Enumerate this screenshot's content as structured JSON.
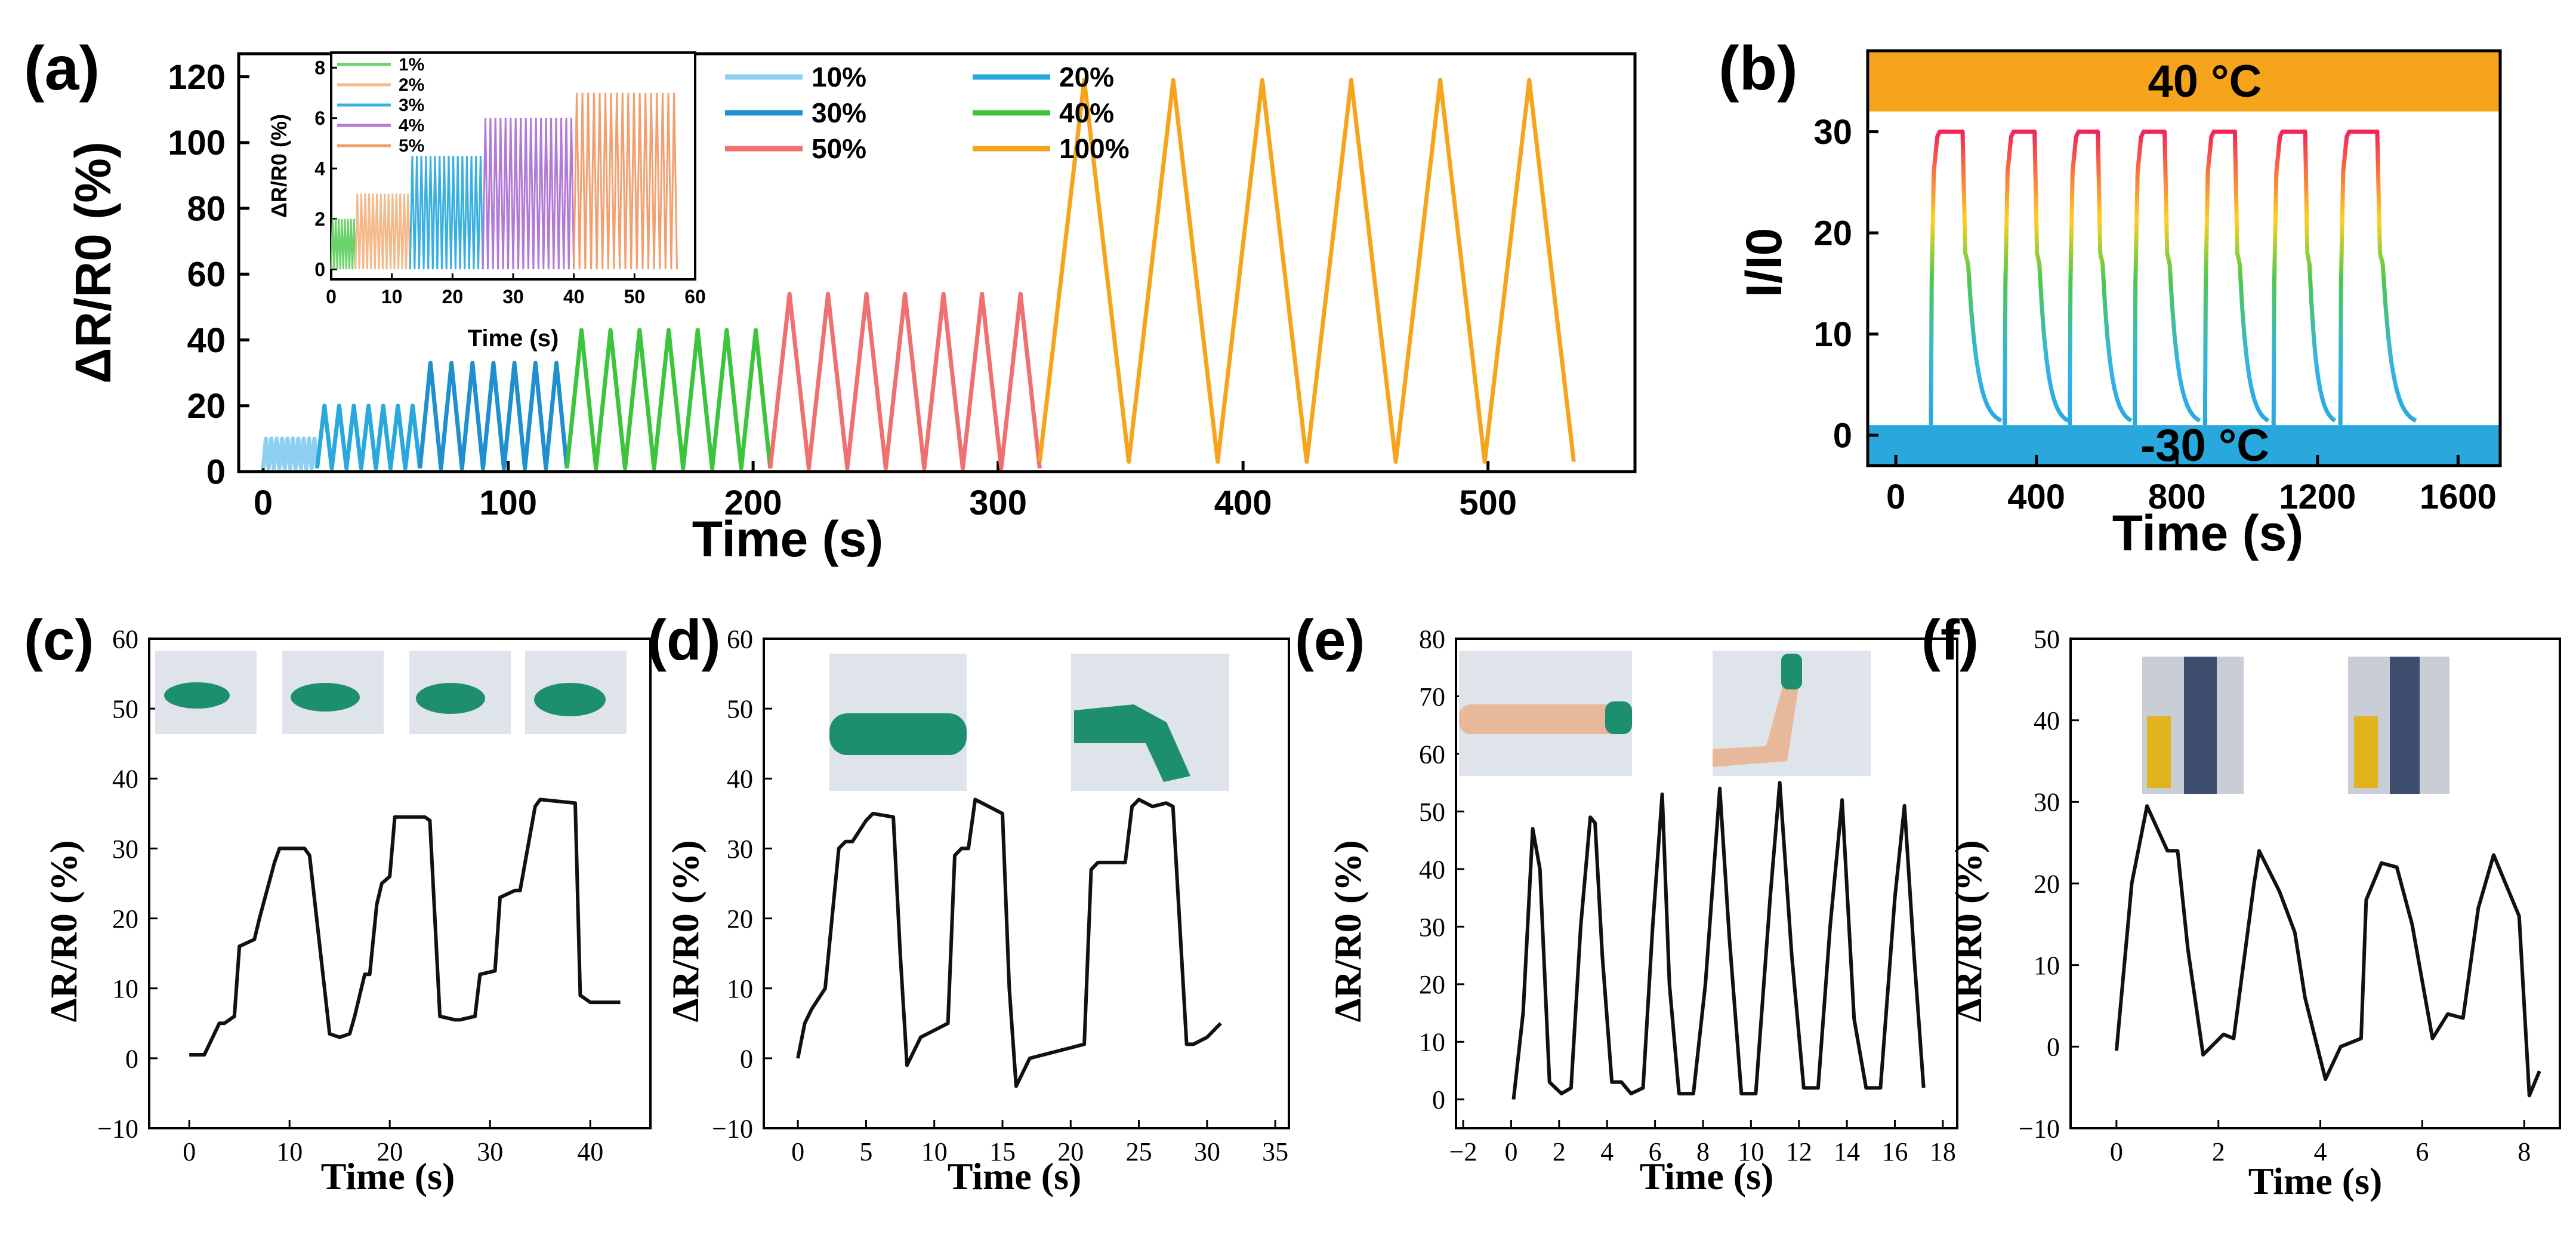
{
  "chart_data": [
    {
      "id": "a",
      "panel_label": "(a)",
      "type": "line",
      "xlabel": "Time (s)",
      "ylabel": "ΔR/R0 (%)",
      "xlim": [
        -10,
        560
      ],
      "ylim": [
        0,
        127
      ],
      "xticks": [
        0,
        100,
        200,
        300,
        400,
        500
      ],
      "yticks": [
        0,
        20,
        40,
        60,
        80,
        100,
        120
      ],
      "legend": [
        {
          "label": "10%",
          "color": "#8fd0f0"
        },
        {
          "label": "20%",
          "color": "#29a8dd"
        },
        {
          "label": "30%",
          "color": "#1f8fcf"
        },
        {
          "label": "40%",
          "color": "#3cc43c"
        },
        {
          "label": "50%",
          "color": "#f07070"
        },
        {
          "label": "100%",
          "color": "#f7a41d"
        }
      ],
      "series": [
        {
          "name": "10%",
          "color": "#8fd0f0",
          "t_start": 0,
          "t_end": 22,
          "cycles": 10,
          "min": 1,
          "max": 10
        },
        {
          "name": "20%",
          "color": "#29a8dd",
          "t_start": 22,
          "t_end": 64,
          "cycles": 7,
          "min": 1,
          "max": 20
        },
        {
          "name": "30%",
          "color": "#1f8fcf",
          "t_start": 64,
          "t_end": 124,
          "cycles": 7,
          "min": 1,
          "max": 33
        },
        {
          "name": "40%",
          "color": "#3cc43c",
          "t_start": 124,
          "t_end": 207,
          "cycles": 7,
          "min": 1,
          "max": 43
        },
        {
          "name": "50%",
          "color": "#f07070",
          "t_start": 207,
          "t_end": 317,
          "cycles": 7,
          "min": 1,
          "max": 54
        },
        {
          "name": "100%",
          "color": "#f7a41d",
          "t_start": 317,
          "t_end": 535,
          "cycles": 6,
          "min": 3,
          "max": 119
        }
      ],
      "inset": {
        "xlabel": "Time (s)",
        "ylabel": "ΔR/R0 (%)",
        "xlim": [
          0,
          60
        ],
        "ylim": [
          -0.4,
          8.6
        ],
        "xticks": [
          0,
          10,
          20,
          30,
          40,
          50,
          60
        ],
        "yticks": [
          0,
          2,
          4,
          6,
          8
        ],
        "legend": [
          {
            "label": "1%",
            "color": "#6cd26c"
          },
          {
            "label": "2%",
            "color": "#f5b98a"
          },
          {
            "label": "3%",
            "color": "#3ab0e0"
          },
          {
            "label": "4%",
            "color": "#b07ad6"
          },
          {
            "label": "5%",
            "color": "#f3a070"
          }
        ],
        "series": [
          {
            "name": "1%",
            "color": "#6cd26c",
            "t_start": 0,
            "t_end": 4,
            "cycles": 8,
            "min": 0,
            "max": 2
          },
          {
            "name": "2%",
            "color": "#f5b98a",
            "t_start": 4,
            "t_end": 13,
            "cycles": 14,
            "min": 0,
            "max": 3
          },
          {
            "name": "3%",
            "color": "#3ab0e0",
            "t_start": 13,
            "t_end": 25,
            "cycles": 16,
            "min": 0,
            "max": 4.5
          },
          {
            "name": "4%",
            "color": "#b07ad6",
            "t_start": 25,
            "t_end": 40,
            "cycles": 18,
            "min": 0,
            "max": 6
          },
          {
            "name": "5%",
            "color": "#f3a070",
            "t_start": 40,
            "t_end": 57,
            "cycles": 18,
            "min": 0,
            "max": 7
          }
        ]
      }
    },
    {
      "id": "b",
      "panel_label": "(b)",
      "type": "line",
      "xlabel": "Time (s)",
      "ylabel": "I/I0",
      "xlim": [
        -80,
        1720
      ],
      "ylim": [
        -3,
        38
      ],
      "xticks": [
        0,
        400,
        800,
        1200,
        1600
      ],
      "yticks": [
        0,
        10,
        20,
        30
      ],
      "band_hot_label": "40 °C",
      "band_cold_label": "-30 °C",
      "band_hot_range": [
        32,
        38
      ],
      "band_cold_range": [
        -3,
        1
      ],
      "colors": {
        "hot": "#f7a41d",
        "cold": "#29a8dd"
      },
      "cycles": [
        {
          "start": 100,
          "plateau_end": 190,
          "end": 300
        },
        {
          "start": 310,
          "plateau_end": 395,
          "end": 490
        },
        {
          "start": 495,
          "plateau_end": 575,
          "end": 670
        },
        {
          "start": 680,
          "plateau_end": 765,
          "end": 865
        },
        {
          "start": 880,
          "plateau_end": 965,
          "end": 1060
        },
        {
          "start": 1075,
          "plateau_end": 1165,
          "end": 1250
        },
        {
          "start": 1265,
          "plateau_end": 1370,
          "end": 1480
        }
      ],
      "max": 30,
      "min": 1
    },
    {
      "id": "c",
      "panel_label": "(c)",
      "type": "line",
      "xlabel": "Time (s)",
      "ylabel": "ΔR/R0 (%)",
      "xlim": [
        -4,
        46
      ],
      "ylim": [
        -10,
        60
      ],
      "xticks": [
        0,
        10,
        20,
        30,
        40
      ],
      "yticks": [
        -10,
        0,
        10,
        20,
        30,
        40,
        50,
        60
      ],
      "x": [
        0,
        1.5,
        2,
        3,
        3.5,
        4.5,
        5,
        6.5,
        7,
        8.5,
        9,
        11.5,
        12,
        14,
        15,
        16,
        16.5,
        17.5,
        18,
        18.7,
        19.2,
        20,
        20.5,
        23.5,
        24,
        25,
        26.5,
        27,
        28.5,
        29,
        30.5,
        31,
        32.5,
        33,
        34.5,
        35,
        38.5,
        39,
        40,
        43
      ],
      "y": [
        0.5,
        0.5,
        2,
        5,
        5,
        6,
        16,
        17,
        20,
        28,
        30,
        30,
        29,
        3.5,
        3,
        3.5,
        6,
        12,
        12,
        22,
        25,
        26,
        34.5,
        34.5,
        34,
        6,
        5.5,
        5.5,
        6,
        12,
        12.5,
        23,
        24,
        24,
        36,
        37,
        36.5,
        9,
        8,
        8
      ]
    },
    {
      "id": "d",
      "panel_label": "(d)",
      "type": "line",
      "xlabel": "Time (s)",
      "ylabel": "ΔR/R0 (%)",
      "xlim": [
        -2.5,
        36
      ],
      "ylim": [
        -10,
        60
      ],
      "xticks": [
        0,
        5,
        10,
        15,
        20,
        25,
        30,
        35
      ],
      "yticks": [
        -10,
        0,
        10,
        20,
        30,
        40,
        50,
        60
      ],
      "x": [
        0,
        0.5,
        1,
        2,
        3,
        3.5,
        4,
        5,
        5.5,
        7,
        7.5,
        8,
        9,
        10,
        11,
        11.5,
        12,
        12.5,
        13,
        13.5,
        15,
        15.5,
        16,
        17,
        19,
        21,
        21.5,
        22,
        23,
        24,
        24.5,
        25,
        26,
        27,
        27.5,
        28.5,
        29,
        30,
        31
      ],
      "y": [
        0,
        5,
        7,
        10,
        30,
        31,
        31,
        34,
        35,
        34.5,
        15,
        -1,
        3,
        4,
        5,
        29,
        30,
        30,
        37,
        36.5,
        35,
        10,
        -4,
        0,
        1,
        2,
        27,
        28,
        28,
        28,
        36,
        37,
        36,
        36.5,
        36,
        2,
        2,
        3,
        5
      ]
    },
    {
      "id": "e",
      "panel_label": "(e)",
      "type": "line",
      "xlabel": "Time (s)",
      "ylabel": "ΔR/R0 (%)",
      "xlim": [
        -2.3,
        18.6
      ],
      "ylim": [
        -5,
        80
      ],
      "xticks": [
        -2,
        0,
        2,
        4,
        6,
        8,
        10,
        12,
        14,
        16,
        18
      ],
      "yticks": [
        0,
        10,
        20,
        30,
        40,
        50,
        60,
        70,
        80
      ],
      "x": [
        0.1,
        0.5,
        0.9,
        1.2,
        1.6,
        2.1,
        2.5,
        2.9,
        3.3,
        3.5,
        3.8,
        4.2,
        4.6,
        5.0,
        5.5,
        5.9,
        6.3,
        6.6,
        7.0,
        7.6,
        8.1,
        8.7,
        9.1,
        9.6,
        10.2,
        10.8,
        11.2,
        11.7,
        12.2,
        12.8,
        13.3,
        13.8,
        14.3,
        14.8,
        15.4,
        16.0,
        16.4,
        16.8,
        17.2
      ],
      "y": [
        0,
        15,
        47,
        40,
        3,
        1,
        2,
        30,
        49,
        48,
        25,
        3,
        3,
        1,
        2,
        30,
        53,
        20,
        1,
        1,
        20,
        54,
        28,
        1,
        1,
        35,
        55,
        25,
        2,
        2,
        30,
        52,
        14,
        2,
        2,
        35,
        51,
        25,
        2
      ]
    },
    {
      "id": "f",
      "panel_label": "(f)",
      "type": "line",
      "xlabel": "Time (s)",
      "ylabel": "ΔR/R0 (%)",
      "xlim": [
        -0.9,
        8.7
      ],
      "ylim": [
        -10,
        50
      ],
      "xticks": [
        0,
        2,
        4,
        6,
        8
      ],
      "yticks": [
        -10,
        0,
        10,
        20,
        30,
        40,
        50
      ],
      "x": [
        0,
        0.3,
        0.6,
        1.0,
        1.2,
        1.4,
        1.7,
        2.1,
        2.3,
        2.7,
        2.8,
        3.2,
        3.5,
        3.7,
        4.1,
        4.4,
        4.8,
        4.9,
        5.2,
        5.5,
        5.8,
        6.2,
        6.5,
        6.8,
        7.1,
        7.4,
        7.9,
        8.1,
        8.3
      ],
      "y": [
        -0.5,
        20,
        29.5,
        24,
        24,
        12,
        -1,
        1.5,
        1,
        20,
        24,
        19,
        14,
        6,
        -4,
        0,
        1,
        18,
        22.5,
        22,
        15,
        1,
        4,
        3.5,
        17,
        23.5,
        16,
        -6,
        -3
      ]
    }
  ]
}
